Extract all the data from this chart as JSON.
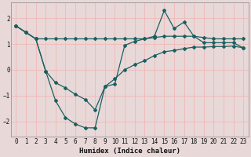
{
  "title": "",
  "xlabel": "Humidex (Indice chaleur)",
  "ylabel": "",
  "bg_color": "#e8d8d8",
  "grid_color": "#f0b8b8",
  "line_color": "#1a6060",
  "xlim": [
    -0.5,
    23.5
  ],
  "ylim": [
    -2.6,
    2.6
  ],
  "xticks": [
    0,
    1,
    2,
    3,
    4,
    5,
    6,
    7,
    8,
    9,
    10,
    11,
    12,
    13,
    14,
    15,
    16,
    17,
    18,
    19,
    20,
    21,
    22,
    23
  ],
  "yticks": [
    -2,
    -1,
    0,
    1,
    2
  ],
  "line1_x": [
    0,
    1,
    2,
    3,
    4,
    5,
    6,
    7,
    8,
    9,
    10,
    11,
    12,
    13,
    14,
    15,
    16,
    17,
    18,
    19,
    20,
    21,
    22,
    23
  ],
  "line1_y": [
    1.7,
    1.45,
    1.2,
    1.2,
    1.2,
    1.2,
    1.2,
    1.2,
    1.2,
    1.2,
    1.2,
    1.2,
    1.2,
    1.2,
    1.25,
    1.3,
    1.3,
    1.3,
    1.3,
    1.25,
    1.2,
    1.2,
    1.2,
    1.2
  ],
  "line2_x": [
    0,
    1,
    2,
    3,
    4,
    5,
    6,
    7,
    8,
    9,
    10,
    11,
    12,
    13,
    14,
    15,
    16,
    17,
    18,
    19,
    20,
    21,
    22,
    23
  ],
  "line2_y": [
    1.7,
    1.45,
    1.2,
    -0.05,
    -1.2,
    -1.85,
    -2.1,
    -2.25,
    -2.25,
    -0.65,
    -0.55,
    0.95,
    1.1,
    1.2,
    1.3,
    2.3,
    1.6,
    1.85,
    1.3,
    1.05,
    1.05,
    1.05,
    1.05,
    0.85
  ],
  "line3_x": [
    0,
    1,
    2,
    3,
    4,
    5,
    6,
    7,
    8,
    9,
    10,
    11,
    12,
    13,
    14,
    15,
    16,
    17,
    18,
    19,
    20,
    21,
    22,
    23
  ],
  "line3_y": [
    1.7,
    1.45,
    1.2,
    -0.05,
    -0.5,
    -0.7,
    -0.95,
    -1.15,
    -1.55,
    -0.65,
    -0.35,
    0.0,
    0.2,
    0.35,
    0.55,
    0.7,
    0.75,
    0.82,
    0.88,
    0.88,
    0.9,
    0.9,
    0.92,
    0.85
  ]
}
